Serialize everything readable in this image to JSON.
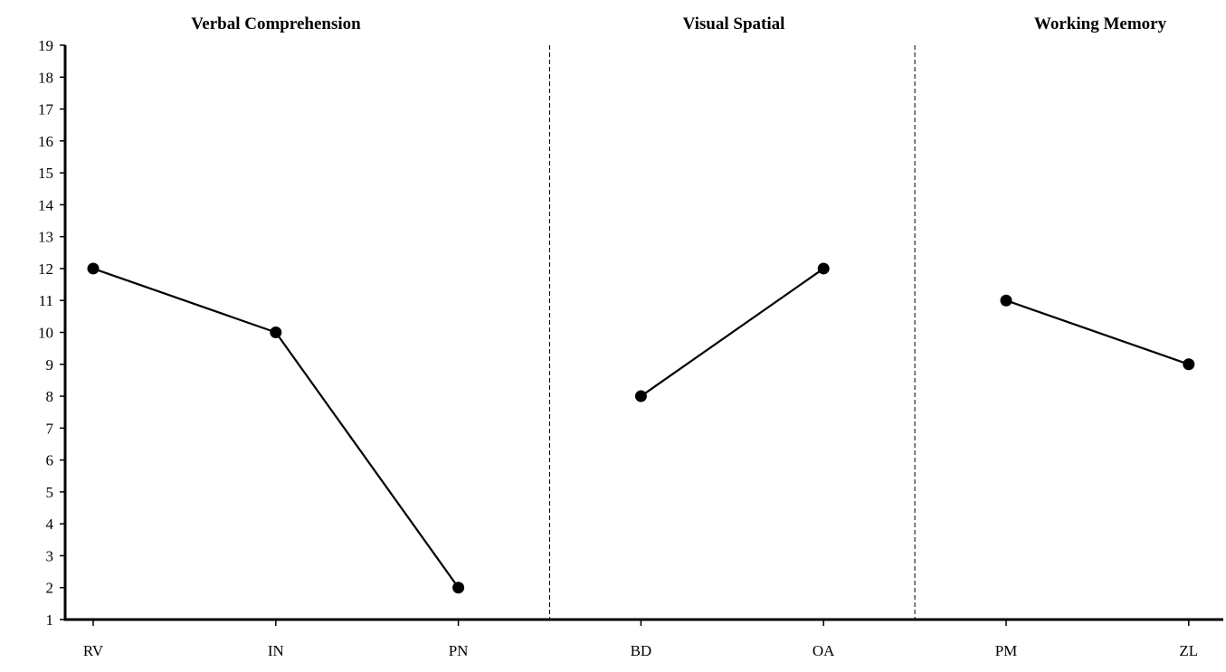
{
  "chart_data": {
    "type": "line",
    "categories": [
      "RV",
      "IN",
      "PN",
      "BD",
      "OA",
      "PM",
      "ZL"
    ],
    "groups": [
      {
        "title": "Verbal Comprehension",
        "categories": [
          "RV",
          "IN",
          "PN"
        ],
        "values": [
          12,
          10,
          2
        ]
      },
      {
        "title": "Visual Spatial",
        "categories": [
          "BD",
          "OA"
        ],
        "values": [
          8,
          12
        ]
      },
      {
        "title": "Working Memory",
        "categories": [
          "PM",
          "ZL"
        ],
        "values": [
          11,
          9
        ]
      }
    ],
    "ylim": [
      1,
      19
    ],
    "yticks": [
      1,
      2,
      3,
      4,
      5,
      6,
      7,
      8,
      9,
      10,
      11,
      12,
      13,
      14,
      15,
      16,
      17,
      18,
      19
    ],
    "xlabel": "",
    "ylabel": "",
    "grid": false,
    "colors": {
      "line": "#000000",
      "marker": "#000000",
      "divider": "#000000"
    }
  }
}
